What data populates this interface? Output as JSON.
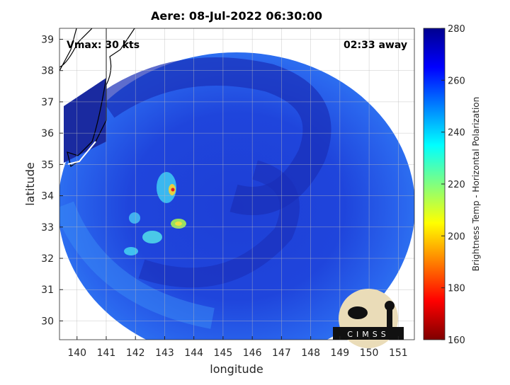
{
  "chart_data": {
    "type": "image",
    "title": "Aere: 08-Jul-2022 06:30:00",
    "annotations": [
      "Vmax: 30 kts",
      "02:33 away"
    ],
    "x_label": "longitude",
    "y_label": "latitude",
    "xlim": [
      139.4,
      151.55
    ],
    "xticks": [
      140,
      141,
      142,
      143,
      144,
      145,
      146,
      147,
      148,
      149,
      150,
      151
    ],
    "ylim": [
      29.4,
      39.35
    ],
    "yticks": [
      30,
      31,
      32,
      33,
      34,
      35,
      36,
      37,
      38,
      39
    ],
    "grid": true,
    "colorbar": {
      "label": "Brightness Temp - Horizontal Polarization",
      "lim": [
        160,
        280
      ],
      "ticks": [
        160,
        180,
        200,
        220,
        240,
        260,
        280
      ],
      "colormap": [
        "#7f0000",
        "#ff0000",
        "#ff8000",
        "#ffff00",
        "#80ff80",
        "#00ffff",
        "#0080ff",
        "#0000ff",
        "#00008f"
      ]
    },
    "logo": "CIMSS"
  }
}
